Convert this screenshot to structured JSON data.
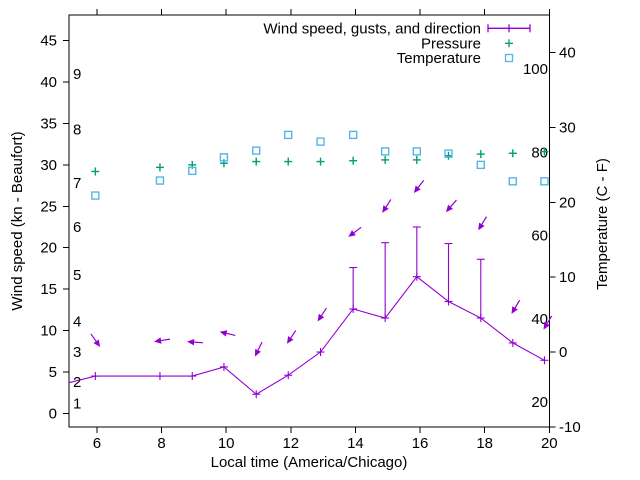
{
  "chart_data": {
    "type": "line",
    "xlabel": "Local time (America/Chicago)",
    "ylabel_left": "Wind speed (kn - Beaufort)",
    "ylabel_right": "Temperature (C - F)",
    "legend": [
      {
        "label": "Wind speed, gusts, and direction",
        "series": "wind",
        "color": "#9400d3"
      },
      {
        "label": "Pressure",
        "series": "pressure",
        "color": "#009e73"
      },
      {
        "label": "Temperature",
        "series": "temperature",
        "color": "#56b4e9"
      }
    ],
    "colors": {
      "wind": "#9400d3",
      "pressure": "#009e73",
      "temperature": "#56b4e9",
      "axis": "#000000"
    },
    "x_range": [
      5.135,
      20
    ],
    "x_ticks": [
      6,
      8,
      10,
      12,
      14,
      16,
      18,
      20
    ],
    "y1_ticks_kn": [
      0,
      5,
      10,
      15,
      20,
      25,
      30,
      35,
      40,
      45
    ],
    "y2_range_c": [
      -10,
      45
    ],
    "y2_ticks_c": [
      -10,
      0,
      10,
      20,
      30,
      40
    ],
    "beaufort_labels": [
      {
        "label": "1",
        "kn": 1.2
      },
      {
        "label": "2",
        "kn": 3.8
      },
      {
        "label": "3",
        "kn": 7.4
      },
      {
        "label": "4",
        "kn": 11.1
      },
      {
        "label": "5",
        "kn": 16.7
      },
      {
        "label": "6",
        "kn": 22.5
      },
      {
        "label": "7",
        "kn": 27.8
      },
      {
        "label": "8",
        "kn": 34.3
      },
      {
        "label": "9",
        "kn": 41.0
      }
    ],
    "fahrenheit_labels": [
      {
        "label": "20",
        "f": 20
      },
      {
        "label": "40",
        "f": 40
      },
      {
        "label": "60",
        "f": 60
      },
      {
        "label": "80",
        "f": 80
      },
      {
        "label": "100",
        "f": 100
      }
    ],
    "times": [
      5.95,
      7.95,
      8.95,
      9.93,
      10.93,
      11.92,
      12.92,
      13.93,
      14.92,
      15.9,
      16.88,
      17.88,
      18.87,
      19.85
    ],
    "wind": {
      "speeds_kn": [
        4.5,
        4.5,
        4.5,
        5.6,
        2.3,
        4.6,
        7.4,
        12.6,
        11.5,
        16.5,
        13.5,
        11.5,
        8.5,
        6.4
      ],
      "gusts_kn": [
        null,
        null,
        null,
        null,
        null,
        null,
        null,
        17.6,
        20.6,
        22.5,
        20.5,
        18.6,
        null,
        null
      ],
      "edge_start": {
        "t": 5.135,
        "kn": 3.7
      },
      "arrows": [
        {
          "t": 6.1,
          "kn": 8.0,
          "dx": 0.58,
          "dy": 0.82
        },
        {
          "t": 7.77,
          "kn": 8.65,
          "dx": -0.99,
          "dy": 0.16
        },
        {
          "t": 8.79,
          "kn": 8.65,
          "dx": -1.0,
          "dy": -0.07
        },
        {
          "t": 9.8,
          "kn": 9.85,
          "dx": -0.97,
          "dy": -0.23
        },
        {
          "t": 10.89,
          "kn": 6.85,
          "dx": -0.44,
          "dy": 0.9
        },
        {
          "t": 11.88,
          "kn": 8.4,
          "dx": -0.55,
          "dy": 0.83
        },
        {
          "t": 12.83,
          "kn": 11.1,
          "dx": -0.55,
          "dy": 0.83
        },
        {
          "t": 13.78,
          "kn": 21.3,
          "dx": -0.8,
          "dy": 0.6
        },
        {
          "t": 14.83,
          "kn": 24.2,
          "dx": -0.54,
          "dy": 0.84
        },
        {
          "t": 15.81,
          "kn": 26.6,
          "dx": -0.61,
          "dy": 0.79
        },
        {
          "t": 16.8,
          "kn": 24.3,
          "dx": -0.66,
          "dy": 0.75
        },
        {
          "t": 17.8,
          "kn": 22.1,
          "dx": -0.52,
          "dy": 0.85
        },
        {
          "t": 18.83,
          "kn": 12.0,
          "dx": -0.51,
          "dy": 0.86
        },
        {
          "t": 19.82,
          "kn": 10.1,
          "dx": -0.51,
          "dy": 0.86
        }
      ]
    },
    "pressure": {
      "values_left_axis": [
        29.2,
        29.7,
        30.0,
        30.2,
        30.4,
        30.4,
        30.4,
        30.5,
        30.6,
        30.6,
        31.1,
        31.3,
        31.4,
        31.6
      ]
    },
    "temperature": {
      "values_c": [
        20.9,
        22.9,
        24.2,
        26.0,
        26.9,
        29.0,
        28.1,
        29.0,
        26.8,
        26.8,
        26.5,
        25.0,
        22.8,
        22.8
      ]
    }
  }
}
